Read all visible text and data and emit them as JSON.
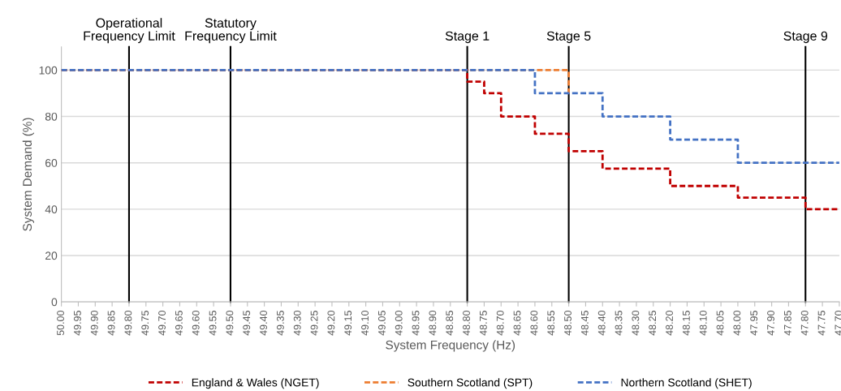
{
  "chart_data": {
    "type": "step",
    "xlabel": "System Frequency (Hz)",
    "ylabel": "System Demand (%)",
    "xlim": [
      50.0,
      47.7
    ],
    "ylim": [
      0,
      110
    ],
    "xticks": [
      {
        "value": 50.0,
        "label": "50.00"
      },
      {
        "value": 49.95,
        "label": "49.95"
      },
      {
        "value": 49.9,
        "label": "49.90"
      },
      {
        "value": 49.85,
        "label": "49.85"
      },
      {
        "value": 49.8,
        "label": "49.80"
      },
      {
        "value": 49.75,
        "label": "49.75"
      },
      {
        "value": 49.7,
        "label": "49.70"
      },
      {
        "value": 49.65,
        "label": "49.65"
      },
      {
        "value": 49.6,
        "label": "49.60"
      },
      {
        "value": 49.55,
        "label": "49.55"
      },
      {
        "value": 49.5,
        "label": "49.50"
      },
      {
        "value": 49.45,
        "label": "49.45"
      },
      {
        "value": 49.4,
        "label": "49.40"
      },
      {
        "value": 49.35,
        "label": "49.35"
      },
      {
        "value": 49.3,
        "label": "49.30"
      },
      {
        "value": 49.25,
        "label": "49.25"
      },
      {
        "value": 49.2,
        "label": "49.20"
      },
      {
        "value": 49.15,
        "label": "49.15"
      },
      {
        "value": 49.1,
        "label": "49.10"
      },
      {
        "value": 49.05,
        "label": "49.05"
      },
      {
        "value": 49.0,
        "label": "49.00"
      },
      {
        "value": 48.95,
        "label": "48.95"
      },
      {
        "value": 48.9,
        "label": "48.90"
      },
      {
        "value": 48.85,
        "label": "48.85"
      },
      {
        "value": 48.8,
        "label": "48.80"
      },
      {
        "value": 48.75,
        "label": "48.75"
      },
      {
        "value": 48.7,
        "label": "48.70"
      },
      {
        "value": 48.65,
        "label": "48.65"
      },
      {
        "value": 48.6,
        "label": "48.60"
      },
      {
        "value": 48.55,
        "label": "48.55"
      },
      {
        "value": 48.5,
        "label": "48.50"
      },
      {
        "value": 48.45,
        "label": "48.45"
      },
      {
        "value": 48.4,
        "label": "48.40"
      },
      {
        "value": 48.35,
        "label": "48.35"
      },
      {
        "value": 48.3,
        "label": "48.30"
      },
      {
        "value": 48.25,
        "label": "48.25"
      },
      {
        "value": 48.2,
        "label": "48.20"
      },
      {
        "value": 48.15,
        "label": "48.15"
      },
      {
        "value": 48.1,
        "label": "48.10"
      },
      {
        "value": 48.05,
        "label": "48.05"
      },
      {
        "value": 48.0,
        "label": "48.00"
      },
      {
        "value": 47.95,
        "label": "47.95"
      },
      {
        "value": 47.9,
        "label": "47.90"
      },
      {
        "value": 47.85,
        "label": "47.85"
      },
      {
        "value": 47.8,
        "label": "47.80"
      },
      {
        "value": 47.75,
        "label": "47.75"
      },
      {
        "value": 47.7,
        "label": "47.70"
      }
    ],
    "yticks": [
      0,
      20,
      40,
      60,
      80,
      100
    ],
    "grid": "y",
    "legend": "bottom",
    "line_style": "dashed",
    "marker": "none",
    "series": [
      {
        "name": "England & Wales (NGET)",
        "color": "#c00000",
        "x": [
          50.0,
          48.8,
          48.75,
          48.7,
          48.6,
          48.5,
          48.4,
          48.2,
          48.0,
          47.8,
          47.7
        ],
        "values": [
          100,
          95,
          90,
          80,
          72.5,
          65,
          57.5,
          50,
          45,
          40,
          40
        ]
      },
      {
        "name": "Southern Scotland (SPT)",
        "color": "#ed7d31",
        "x": [
          50.0,
          48.5,
          48.5
        ],
        "values": [
          100,
          100,
          90
        ]
      },
      {
        "name": "Northern Scotland (SHET)",
        "color": "#4472c4",
        "x": [
          50.0,
          48.6,
          48.4,
          48.2,
          48.0,
          47.7
        ],
        "values": [
          100,
          90,
          80,
          70,
          60,
          60
        ]
      }
    ],
    "ref_lines": [
      {
        "axis": "x",
        "value": 49.8,
        "label": "Operational\nFrequency Limit",
        "color": "#000000"
      },
      {
        "axis": "x",
        "value": 49.5,
        "label": "Statutory\nFrequency Limit",
        "color": "#000000"
      },
      {
        "axis": "x",
        "value": 48.8,
        "label": "Stage 1",
        "color": "#000000"
      },
      {
        "axis": "x",
        "value": 48.5,
        "label": "Stage 5",
        "color": "#000000"
      },
      {
        "axis": "x",
        "value": 47.8,
        "label": "Stage 9",
        "color": "#000000"
      }
    ]
  }
}
